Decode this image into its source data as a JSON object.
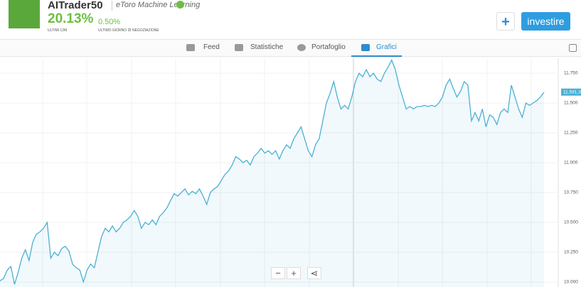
{
  "header": {
    "title": "AITrader50",
    "subtitle": "eToro Machine Learning",
    "gain": "20.13%",
    "gain_label": "ULTIMI 12M",
    "daily": "0.50%",
    "daily_label": "ULTIMO GIORNO DI NEGOZIAZIONE"
  },
  "buttons": {
    "add": "+",
    "invest": "investire"
  },
  "tabs": [
    "Feed",
    "Statistiche",
    "Portafoglio",
    "Grafici"
  ],
  "controls": {
    "zoom_out": "−",
    "zoom_in": "+"
  },
  "chart_data": {
    "type": "line",
    "color": "#4bb0d3",
    "values": [
      10010,
      10030,
      10100,
      10130,
      9980,
      10080,
      10200,
      10270,
      10180,
      10330,
      10400,
      10420,
      10450,
      10500,
      10200,
      10250,
      10220,
      10280,
      10300,
      10260,
      10150,
      10120,
      10100,
      10000,
      10100,
      10150,
      10120,
      10250,
      10380,
      10450,
      10420,
      10470,
      10420,
      10450,
      10500,
      10520,
      10550,
      10600,
      10550,
      10450,
      10500,
      10480,
      10520,
      10480,
      10550,
      10580,
      10620,
      10680,
      10740,
      10720,
      10750,
      10780,
      10730,
      10760,
      10740,
      10780,
      10720,
      10650,
      10750,
      10780,
      10800,
      10850,
      10900,
      10930,
      10980,
      11050,
      11030,
      11000,
      11020,
      10980,
      11050,
      11080,
      11120,
      11080,
      11100,
      11070,
      11100,
      11030,
      11100,
      11150,
      11120,
      11200,
      11250,
      11300,
      11200,
      11100,
      11050,
      11150,
      11200,
      11350,
      11500,
      11580,
      11680,
      11550,
      11450,
      11480,
      11450,
      11550,
      11680,
      11750,
      11720,
      11780,
      11720,
      11750,
      11700,
      11680,
      11750,
      11800,
      11860,
      11780,
      11650,
      11550,
      11450,
      11470,
      11450,
      11470,
      11470,
      11480,
      11470,
      11480,
      11470,
      11500,
      11550,
      11650,
      11700,
      11620,
      11550,
      11600,
      11680,
      11650,
      11350,
      11420,
      11350,
      11450,
      11300,
      11400,
      11380,
      11320,
      11420,
      11450,
      11420,
      11650,
      11550,
      11450,
      11380,
      11500,
      11480,
      11500,
      11520,
      11550,
      11591.3
    ],
    "ylim": [
      9958,
      11875
    ],
    "yticks": [
      {
        "value": 10000,
        "label": "10.000"
      },
      {
        "value": 10250,
        "label": "10.250"
      },
      {
        "value": 10500,
        "label": "10.500"
      },
      {
        "value": 10750,
        "label": "10.750"
      },
      {
        "value": 11000,
        "label": "11.000"
      },
      {
        "value": 11250,
        "label": "11.250"
      },
      {
        "value": 11500,
        "label": "11.500"
      },
      {
        "value": 11750,
        "label": "11.750"
      }
    ],
    "last_value": {
      "value": 11591.3,
      "label": "11.591,3"
    },
    "grid": true
  }
}
